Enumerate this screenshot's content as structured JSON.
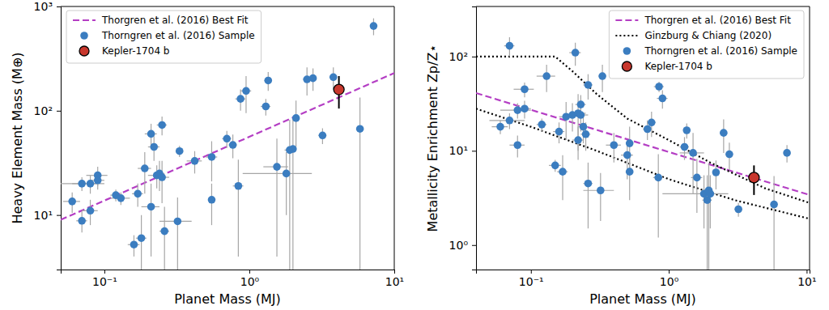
{
  "chart_data": [
    {
      "type": "scatter",
      "log": true,
      "grid": false,
      "legend": "upper left",
      "x_label": "Planet Mass (MJ)",
      "y_label": "Heavy Element Mass (M⊕)",
      "xlim": [
        0.05,
        10
      ],
      "ylim": [
        3,
        1000
      ],
      "xticks": [
        {
          "value": 0.1,
          "label": "10⁻¹"
        },
        {
          "value": 1,
          "label": "10⁰"
        },
        {
          "value": 10,
          "label": "10¹"
        }
      ],
      "yticks": [
        {
          "value": 10,
          "label": "10¹"
        },
        {
          "value": 100,
          "label": "10²"
        },
        {
          "value": 1000,
          "label": "10³"
        }
      ],
      "series": [
        {
          "name": "Thorgren et al. (2016) Best Fit",
          "type": "line",
          "line_style": "dashed",
          "color": "#b43ec4",
          "x": [
            0.05,
            10
          ],
          "values": [
            9,
            230
          ]
        },
        {
          "name": "Thorngren et al. (2016) Sample",
          "type": "scatter",
          "marker": "circle",
          "color": "#3b7dc0",
          "x": [
            0.06,
            0.07,
            0.07,
            0.08,
            0.08,
            0.09,
            0.09,
            0.12,
            0.13,
            0.16,
            0.17,
            0.18,
            0.19,
            0.21,
            0.21,
            0.22,
            0.23,
            0.24,
            0.25,
            0.25,
            0.26,
            0.32,
            0.33,
            0.42,
            0.55,
            0.55,
            0.7,
            0.77,
            0.84,
            0.87,
            0.95,
            1.3,
            1.35,
            1.55,
            1.8,
            1.9,
            2.0,
            2.1,
            2.5,
            2.75,
            3.2,
            3.8,
            5.8,
            7.2
          ],
          "values": [
            13.5,
            8.8,
            20,
            20,
            11,
            24,
            21.5,
            15.5,
            14.5,
            5.2,
            16,
            6,
            28,
            60,
            12,
            45,
            24,
            25,
            73,
            23,
            7,
            8.7,
            41,
            33,
            36,
            14,
            54,
            47,
            19,
            130,
            155,
            110,
            195,
            29,
            25,
            42,
            43,
            85,
            200,
            205,
            58,
            210,
            67,
            650
          ],
          "x_err": [
            0.008,
            0.006,
            0.02,
            0.02,
            0.01,
            0.015,
            0.01,
            0.01,
            0.02,
            0.015,
            0.015,
            0.015,
            0.02,
            0.02,
            0.03,
            0.02,
            0.03,
            0.02,
            0.02,
            0.03,
            0.02,
            0.08,
            0.02,
            0.05,
            0.05,
            0.03,
            0.05,
            0.05,
            0.07,
            0.07,
            0.08,
            0.1,
            0.08,
            0.3,
            0.9,
            0.15,
            0.1,
            0.12,
            0.15,
            0.15,
            0.2,
            0.2,
            0.3,
            0.4
          ],
          "y_err": [
            3,
            2,
            3,
            4,
            3,
            5,
            4,
            2,
            2,
            1.2,
            4,
            4,
            12,
            15,
            8,
            12,
            6,
            8,
            15,
            10,
            5,
            6,
            5,
            8,
            15,
            6,
            10,
            12,
            15,
            30,
            60,
            20,
            40,
            25,
            15,
            40,
            40,
            40,
            60,
            50,
            10,
            50,
            67,
            120
          ]
        },
        {
          "name": "Kepler-1704 b",
          "type": "scatter",
          "marker": "circle_edged",
          "color": "#c8372d",
          "x": [
            4.15
          ],
          "values": [
            160
          ],
          "x_err": [
            0.3
          ],
          "y_err": [
            55
          ]
        }
      ]
    },
    {
      "type": "scatter",
      "log": true,
      "grid": false,
      "legend": "upper right",
      "x_label": "Planet Mass (MJ)",
      "y_label": "Metallicity Enrichment  Zp/Z⋆",
      "xlim": [
        0.04,
        10.5
      ],
      "ylim": [
        0.55,
        340
      ],
      "xticks": [
        {
          "value": 0.1,
          "label": "10⁻¹"
        },
        {
          "value": 1,
          "label": "10⁰"
        },
        {
          "value": 10,
          "label": "10¹"
        }
      ],
      "yticks": [
        {
          "value": 1,
          "label": "10⁰"
        },
        {
          "value": 10,
          "label": "10¹"
        },
        {
          "value": 100,
          "label": "10²"
        }
      ],
      "series": [
        {
          "name": "Thorgren et al. (2016) Best Fit",
          "type": "line",
          "line_style": "dashed",
          "color": "#b43ec4",
          "x": [
            0.04,
            10.5
          ],
          "values": [
            41,
            3.4
          ]
        },
        {
          "name": "Ginzburg & Chiang (2020)",
          "type": "line",
          "line_style": "dotted",
          "color": "#000000",
          "x": [
            0.04,
            0.15,
            0.2,
            0.3,
            0.5,
            1,
            2,
            5,
            10.5,
            null,
            0.04,
            0.1,
            0.3,
            1,
            3,
            10.5
          ],
          "values": [
            100,
            100,
            70,
            40,
            22,
            13,
            7.5,
            4,
            2.8,
            null,
            28,
            18,
            10,
            5,
            3,
            1.9
          ]
        },
        {
          "name": "Thorngren et al. (2016) Sample",
          "type": "scatter",
          "marker": "circle",
          "color": "#3b7dc0",
          "x": [
            0.06,
            0.07,
            0.07,
            0.08,
            0.08,
            0.09,
            0.09,
            0.12,
            0.13,
            0.15,
            0.16,
            0.17,
            0.18,
            0.2,
            0.21,
            0.22,
            0.22,
            0.23,
            0.23,
            0.24,
            0.25,
            0.26,
            0.26,
            0.32,
            0.33,
            0.4,
            0.5,
            0.52,
            0.52,
            0.7,
            0.75,
            0.84,
            0.85,
            0.9,
            1.3,
            1.35,
            1.5,
            1.6,
            1.8,
            1.9,
            1.95,
            2.0,
            2.2,
            2.5,
            2.75,
            3.2,
            5.8,
            7.2
          ],
          "values": [
            18,
            130,
            21,
            27,
            11.5,
            45,
            28,
            19,
            62,
            7,
            16,
            6,
            23,
            24,
            110,
            25,
            13,
            31,
            24,
            18,
            15,
            50,
            4.5,
            3.8,
            62,
            11.5,
            9,
            12,
            6,
            17,
            20,
            5.2,
            48,
            36,
            11,
            16.5,
            9.5,
            5.2,
            3.5,
            3,
            3.8,
            3.5,
            5.9,
            15.5,
            9.2,
            2.4,
            2.7,
            9.5
          ],
          "x_err": [
            0.008,
            0.006,
            0.02,
            0.02,
            0.01,
            0.015,
            0.01,
            0.01,
            0.02,
            0.015,
            0.015,
            0.015,
            0.02,
            0.02,
            0.02,
            0.03,
            0.02,
            0.02,
            0.03,
            0.02,
            0.02,
            0.02,
            0.02,
            0.08,
            0.02,
            0.05,
            0.05,
            0.03,
            0.03,
            0.05,
            0.05,
            0.07,
            0.07,
            0.08,
            0.1,
            0.08,
            0.3,
            0.15,
            0.9,
            0.15,
            0.1,
            0.1,
            0.12,
            0.15,
            0.15,
            0.2,
            0.3,
            0.4
          ],
          "y_err": [
            3,
            30,
            4,
            5,
            3,
            8,
            6,
            3,
            20,
            1,
            4,
            3,
            10,
            8,
            30,
            15,
            5,
            8,
            8,
            6,
            5,
            15,
            3,
            2,
            20,
            4,
            4,
            6,
            3,
            4,
            6,
            4,
            6,
            8,
            3,
            3,
            6,
            3,
            2,
            2.5,
            3.5,
            2,
            2,
            6,
            3,
            0.4,
            2.7,
            2
          ]
        },
        {
          "name": "Kepler-1704 b",
          "type": "scatter",
          "marker": "circle_edged",
          "color": "#c8372d",
          "x": [
            4.15
          ],
          "values": [
            5.2
          ],
          "x_err": [
            0.3
          ],
          "y_err": [
            1.8
          ]
        }
      ]
    }
  ]
}
